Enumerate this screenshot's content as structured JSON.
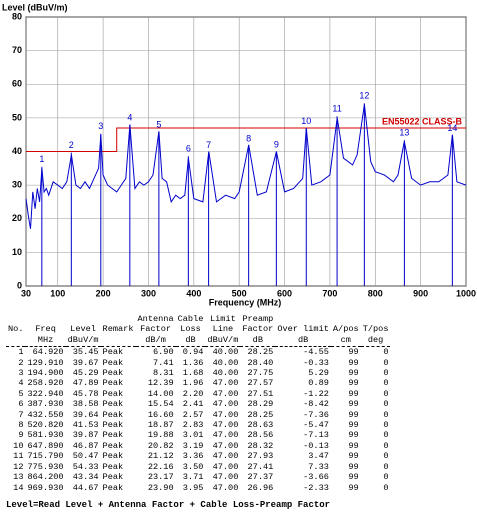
{
  "chart_data": {
    "type": "line",
    "y_label": "Level (dBuV/m)",
    "x_label": "Frequency (MHz)",
    "xlim": [
      30,
      1000
    ],
    "ylim": [
      0,
      80
    ],
    "xticks": [
      30,
      100,
      200,
      300,
      400,
      500,
      600,
      700,
      800,
      900,
      1000
    ],
    "yticks": [
      0,
      10,
      20,
      30,
      40,
      50,
      60,
      70,
      80
    ],
    "grid": true,
    "series": [
      {
        "color": "#0000cc",
        "x": [
          30,
          35,
          40,
          45,
          50,
          55,
          60,
          65,
          70,
          75,
          80,
          90,
          100,
          110,
          120,
          130,
          140,
          150,
          160,
          170,
          180,
          190,
          195,
          200,
          210,
          220,
          230,
          240,
          250,
          259,
          270,
          280,
          290,
          300,
          310,
          323,
          330,
          340,
          350,
          360,
          370,
          380,
          388,
          400,
          420,
          433,
          450,
          470,
          490,
          500,
          521,
          540,
          560,
          582,
          600,
          620,
          640,
          648,
          660,
          680,
          700,
          716,
          730,
          750,
          760,
          776,
          790,
          800,
          820,
          840,
          850,
          864,
          880,
          900,
          920,
          940,
          960,
          970,
          980,
          1000
        ],
        "values": [
          26,
          21,
          17,
          28,
          23,
          29,
          25,
          35,
          28,
          29,
          27,
          31,
          30,
          29,
          31,
          39,
          30,
          29,
          31,
          29,
          32,
          35,
          45,
          33,
          30,
          29,
          28,
          30,
          32,
          48,
          29,
          31,
          30,
          31,
          33,
          46,
          32,
          31,
          25,
          27,
          26,
          27,
          38,
          26,
          25,
          40,
          25,
          27,
          26,
          28,
          42,
          27,
          28,
          40,
          28,
          29,
          32,
          47,
          30,
          31,
          33,
          50,
          38,
          36,
          39,
          54,
          37,
          34,
          33,
          31,
          33,
          43,
          32,
          30,
          31,
          31,
          33,
          45,
          31,
          30
        ]
      }
    ],
    "limit": {
      "name": "EN55022 CLASS-B",
      "color": "#d00000",
      "x": [
        30,
        230,
        230,
        1000
      ],
      "values": [
        40,
        40,
        47,
        47
      ]
    }
  },
  "table": {
    "headers": [
      [
        "No."
      ],
      [
        "Freq"
      ],
      [
        "Level"
      ],
      [
        "Remark"
      ],
      [
        "Antenna",
        "Factor"
      ],
      [
        "Cable",
        "Loss"
      ],
      [
        "Limit",
        "Line"
      ],
      [
        "Preamp",
        "Factor"
      ],
      [
        "Over limit"
      ],
      [
        "A/pos"
      ],
      [
        "T/pos"
      ]
    ],
    "units": [
      null,
      "MHz",
      "dBuV/m",
      null,
      "dB/m",
      "dB",
      "dBuV/m",
      "dB",
      "dB",
      "cm",
      "deg"
    ],
    "rows": [
      [
        "1",
        "64.920",
        "35.45",
        "Peak",
        "6.90",
        "0.94",
        "40.00",
        "28.25",
        "-4.55",
        "99",
        "0"
      ],
      [
        "2",
        "129.910",
        "39.67",
        "Peak",
        "7.41",
        "1.36",
        "40.00",
        "28.40",
        "-0.33",
        "99",
        "0"
      ],
      [
        "3",
        "194.900",
        "45.29",
        "Peak",
        "8.31",
        "1.68",
        "40.00",
        "27.75",
        "5.29",
        "99",
        "0"
      ],
      [
        "4",
        "258.920",
        "47.89",
        "Peak",
        "12.39",
        "1.96",
        "47.00",
        "27.57",
        "0.89",
        "99",
        "0"
      ],
      [
        "5",
        "322.940",
        "45.78",
        "Peak",
        "14.00",
        "2.20",
        "47.00",
        "27.51",
        "-1.22",
        "99",
        "0"
      ],
      [
        "6",
        "387.930",
        "38.58",
        "Peak",
        "15.54",
        "2.41",
        "47.00",
        "28.29",
        "-8.42",
        "99",
        "0"
      ],
      [
        "7",
        "432.550",
        "39.64",
        "Peak",
        "16.60",
        "2.57",
        "47.00",
        "28.25",
        "-7.36",
        "99",
        "0"
      ],
      [
        "8",
        "520.820",
        "41.53",
        "Peak",
        "18.87",
        "2.83",
        "47.00",
        "28.63",
        "-5.47",
        "99",
        "0"
      ],
      [
        "9",
        "581.930",
        "39.87",
        "Peak",
        "19.88",
        "3.01",
        "47.00",
        "28.56",
        "-7.13",
        "99",
        "0"
      ],
      [
        "10",
        "647.890",
        "46.87",
        "Peak",
        "20.82",
        "3.19",
        "47.00",
        "28.32",
        "-0.13",
        "99",
        "0"
      ],
      [
        "11",
        "715.790",
        "50.47",
        "Peak",
        "21.12",
        "3.36",
        "47.00",
        "27.93",
        "3.47",
        "99",
        "0"
      ],
      [
        "12",
        "775.930",
        "54.33",
        "Peak",
        "22.16",
        "3.50",
        "47.00",
        "27.41",
        "7.33",
        "99",
        "0"
      ],
      [
        "13",
        "864.200",
        "43.34",
        "Peak",
        "23.17",
        "3.71",
        "47.00",
        "27.37",
        "-3.66",
        "99",
        "0"
      ],
      [
        "14",
        "969.930",
        "44.67",
        "Peak",
        "23.90",
        "3.95",
        "47.00",
        "26.96",
        "-2.33",
        "99",
        "0"
      ]
    ]
  },
  "footer": "Level=Read Level + Antenna Factor + Cable Loss-Preamp Factor"
}
